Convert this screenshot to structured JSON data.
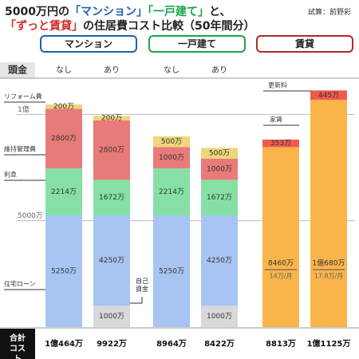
{
  "header": {
    "title_line1": [
      "5000万円の",
      "「マンション」",
      "「一戸建て」",
      "と、"
    ],
    "title_line2": [
      "「ずっと賃貸」",
      "の住居費コスト比較（50年間分）"
    ],
    "credit": "試算：前野彩"
  },
  "buttons": [
    "マンション",
    "一戸建て",
    "賃貸"
  ],
  "chart_data": {
    "type": "bar",
    "stacked": true,
    "category_label": "頭金",
    "categories": [
      "なし",
      "あり",
      "なし",
      "あり",
      null,
      null
    ],
    "ylim": [
      0,
      12000
    ],
    "yticks": [
      {
        "value": 5000,
        "label": "5000万"
      },
      {
        "value": 10000,
        "label": "1億"
      }
    ],
    "grid": true,
    "series": [
      {
        "name": "自己資金",
        "color": "#d9d9d9",
        "values": [
          null,
          1000,
          null,
          1000,
          null,
          null
        ],
        "value_labels": [
          null,
          "1000万",
          null,
          "1000万",
          null,
          null
        ]
      },
      {
        "name": "住宅ローン",
        "color": "#a8c4f2",
        "values": [
          5250,
          4250,
          5250,
          4250,
          null,
          null
        ],
        "value_labels": [
          "5250万",
          "4250万",
          "5250万",
          "4250万",
          null,
          null
        ]
      },
      {
        "name": "利息",
        "color": "#86e0a6",
        "values": [
          2214,
          1672,
          2214,
          1672,
          null,
          null
        ],
        "value_labels": [
          "2214万",
          "1672万",
          "2214万",
          "1672万",
          null,
          null
        ]
      },
      {
        "name": "維持管理費",
        "color": "#e87a7a",
        "values": [
          2800,
          2800,
          1000,
          1000,
          null,
          null
        ],
        "value_labels": [
          "2800万",
          "2800万",
          "1000万",
          "1000万",
          null,
          null
        ]
      },
      {
        "name": "リフォーム費",
        "color": "#eed67a",
        "values": [
          200,
          200,
          500,
          500,
          null,
          null
        ],
        "value_labels": [
          "200万",
          "200万",
          "500万",
          "500万",
          null,
          null
        ]
      },
      {
        "name": "家賃",
        "color": "#f9b44a",
        "values": [
          null,
          null,
          null,
          null,
          8460,
          10680
        ],
        "value_labels": [
          null,
          null,
          null,
          null,
          "8460万",
          "1億680万"
        ],
        "sub_labels": [
          null,
          null,
          null,
          null,
          "14万/月",
          "17.8万/月"
        ]
      },
      {
        "name": "更新料",
        "color": "#f05a4e",
        "values": [
          null,
          null,
          null,
          null,
          353,
          445
        ],
        "value_labels": [
          null,
          null,
          null,
          null,
          "353万",
          "445万"
        ]
      }
    ],
    "totals": {
      "label": "合計コスト",
      "values": [
        10464,
        9922,
        8964,
        8422,
        8813,
        11125
      ],
      "value_labels": [
        "1億464万",
        "9922万",
        "8964万",
        "8422万",
        "8813万",
        "1億1125万"
      ]
    }
  }
}
